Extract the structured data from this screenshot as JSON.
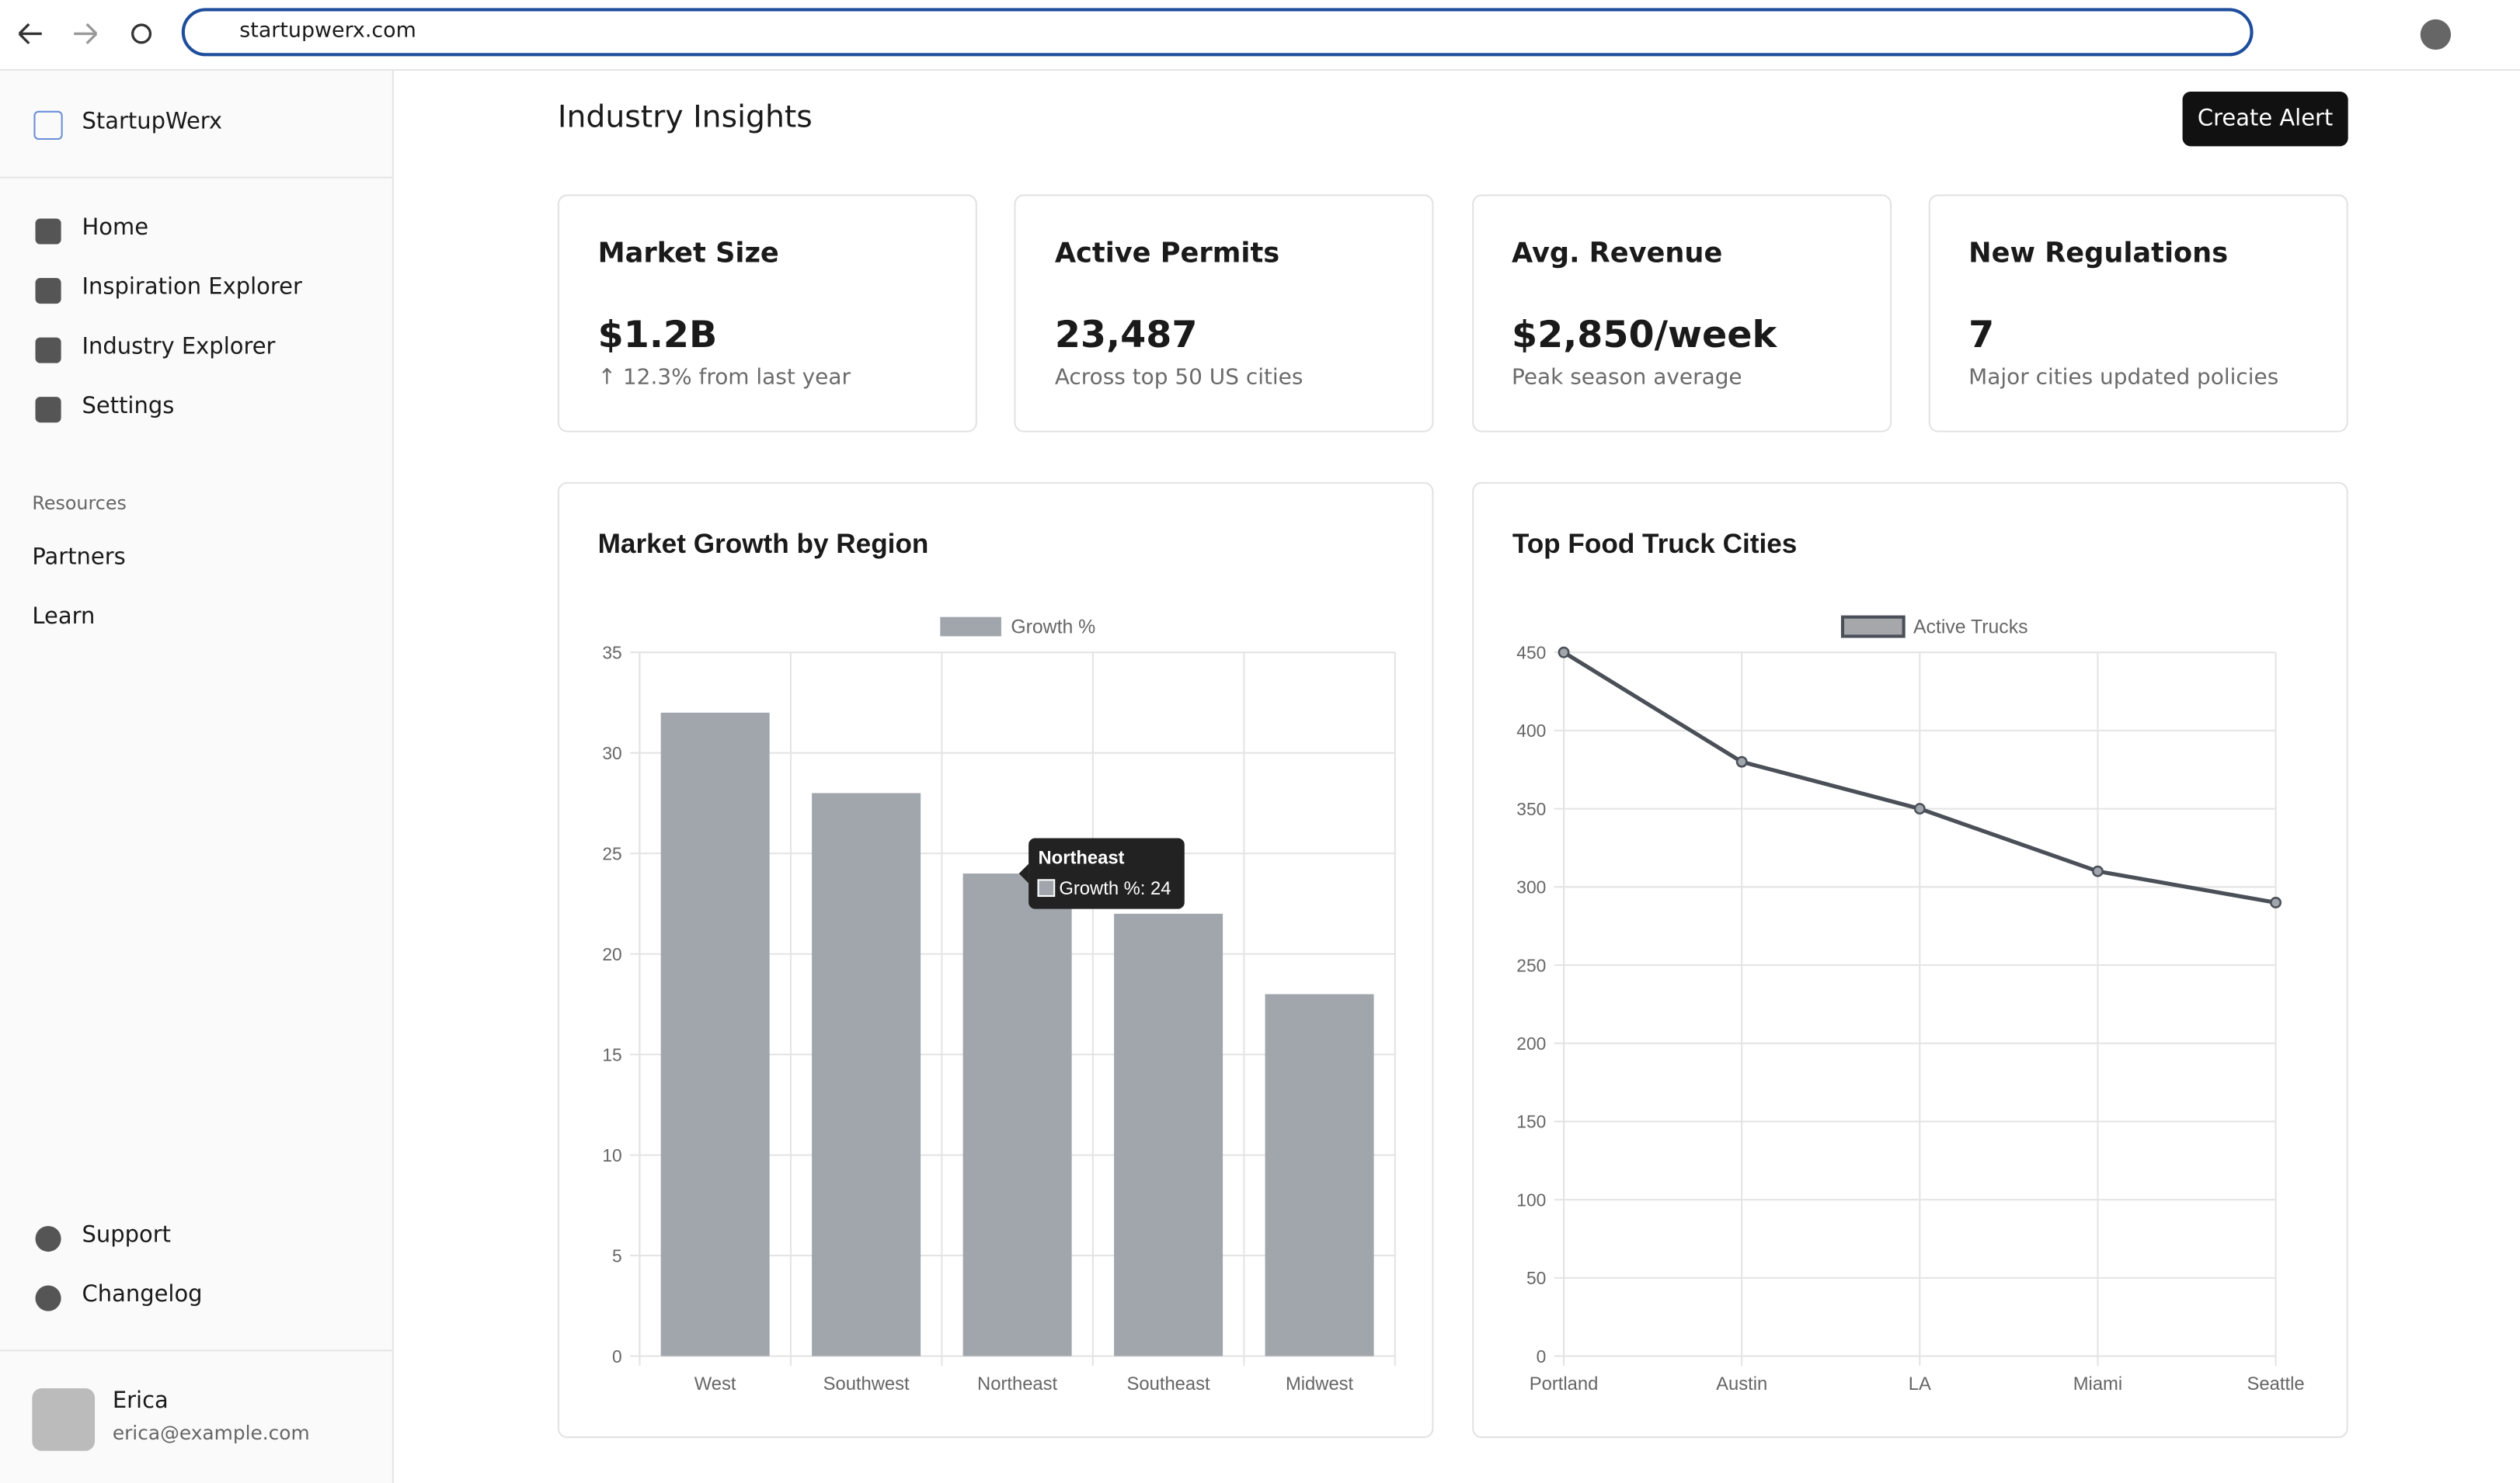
{
  "browser": {
    "url": "startupwerx.com"
  },
  "sidebar": {
    "brand": "StartupWerx",
    "nav": [
      "Home",
      "Inspiration Explorer",
      "Industry Explorer",
      "Settings"
    ],
    "resources_label": "Resources",
    "resources": [
      "Partners",
      "Learn"
    ],
    "footer": [
      "Support",
      "Changelog"
    ],
    "user": {
      "name": "Erica",
      "email": "erica@example.com"
    }
  },
  "header": {
    "title": "Industry Insights",
    "button": "Create Alert"
  },
  "cards": [
    {
      "title": "Market Size",
      "value": "$1.2B",
      "note": "↑ 12.3% from last year"
    },
    {
      "title": "Active Permits",
      "value": "23,487",
      "note": "Across top 50 US cities"
    },
    {
      "title": "Avg. Revenue",
      "value": "$2,850/week",
      "note": "Peak season average"
    },
    {
      "title": "New Regulations",
      "value": "7",
      "note": "Major cities updated policies"
    }
  ],
  "chart_data": [
    {
      "type": "bar",
      "title": "Market Growth by Region",
      "categories": [
        "West",
        "Southwest",
        "Northeast",
        "Southeast",
        "Midwest"
      ],
      "series": [
        {
          "name": "Growth %",
          "color": "#a1a6ad",
          "values": [
            32,
            28,
            24,
            22,
            18
          ]
        }
      ],
      "ylim": [
        0,
        35
      ],
      "yticks": [
        0,
        5,
        10,
        15,
        20,
        25,
        30,
        35
      ],
      "grid": true,
      "tooltip": {
        "title": "Northeast",
        "label": "Growth %: 24"
      }
    },
    {
      "type": "line",
      "title": "Top Food Truck Cities",
      "categories": [
        "Portland",
        "Austin",
        "LA",
        "Miami",
        "Seattle"
      ],
      "series": [
        {
          "name": "Active Trucks",
          "color": "#4b5058",
          "values": [
            450,
            380,
            350,
            310,
            290
          ]
        }
      ],
      "ylim": [
        0,
        450
      ],
      "yticks": [
        0,
        50,
        100,
        150,
        200,
        250,
        300,
        350,
        400,
        450
      ],
      "grid": true
    }
  ]
}
